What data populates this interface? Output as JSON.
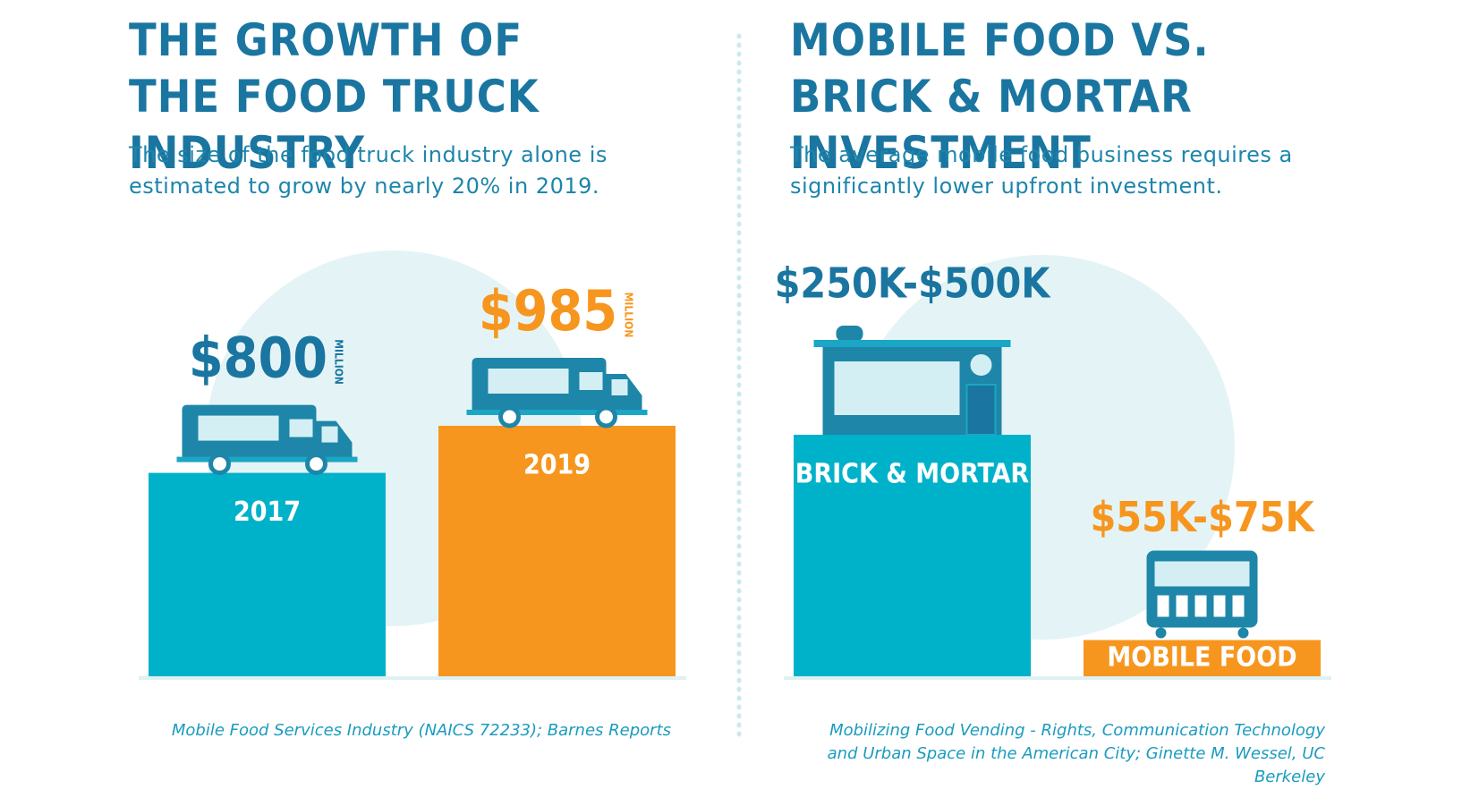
{
  "chart_data": [
    {
      "type": "bar",
      "title": "THE GROWTH OF THE FOOD TRUCK INDUSTRY",
      "subtitle": "The size of the food truck industry alone is estimated to grow by nearly 20% in 2019.",
      "categories": [
        "2017",
        "2019"
      ],
      "values": [
        800,
        985
      ],
      "value_labels": [
        "$800",
        "$985"
      ],
      "unit_label": "MILLION",
      "colors": [
        "#00b2c9",
        "#f7961e"
      ],
      "value_label_colors": [
        "#1a76a0",
        "#f7961e"
      ],
      "source": "Mobile Food Services Industry (NAICS 72233); Barnes Reports"
    },
    {
      "type": "range-bar",
      "title": "MOBILE FOOD VS. BRICK & MORTAR INVESTMENT",
      "subtitle": "The average mobile food business requires a significantly lower upfront investment.",
      "categories": [
        "BRICK & MORTAR",
        "MOBILE FOOD"
      ],
      "values": [
        [
          250000,
          500000
        ],
        [
          55000,
          75000
        ]
      ],
      "value_labels": [
        "$250K-$500K",
        "$55K-$75K"
      ],
      "colors": [
        "#00b2c9",
        "#f7961e"
      ],
      "value_label_colors": [
        "#1a76a0",
        "#f7961e"
      ],
      "source": "Mobilizing Food Vending - Rights, Communication Technology and Urban Space in the American City; Ginette M. Wessel, UC Berkeley"
    }
  ]
}
